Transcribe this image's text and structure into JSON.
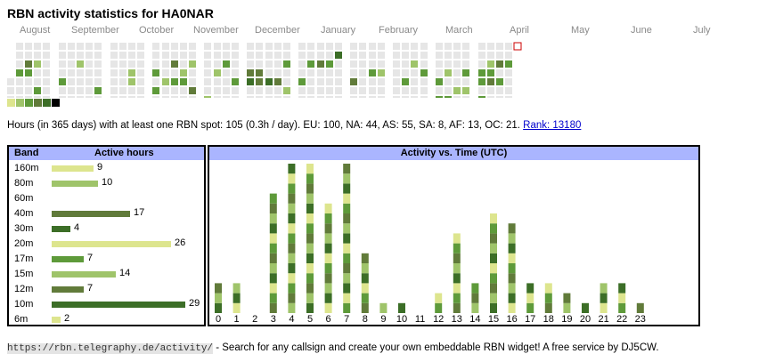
{
  "page": {
    "title": "RBN activity statistics for HA0NAR"
  },
  "months": [
    "August",
    "September",
    "October",
    "November",
    "December",
    "January",
    "February",
    "March",
    "April",
    "May",
    "June",
    "July"
  ],
  "colors": {
    "empty": "#e6e6e6",
    "levels": [
      "#dde58e",
      "#9fc46a",
      "#5e9a3a",
      "#617b3a",
      "#3c6e27",
      "#000000"
    ],
    "today_border": "#cc0000",
    "header_bg": "#aab5ff"
  },
  "summary": {
    "text": "Hours (in 365 days) with at least one RBN spot: 105 (0.3h / day). EU: 100, NA: 44, AS: 55, SA: 8, AF: 13, OC: 21.",
    "rank_link": "Rank: 13180"
  },
  "bands": {
    "header_band": "Band",
    "header_hours": "Active hours",
    "rows": [
      {
        "band": "160m",
        "hours": 9,
        "color": "#dde58e"
      },
      {
        "band": "80m",
        "hours": 10,
        "color": "#9fc46a"
      },
      {
        "band": "60m",
        "hours": 0,
        "color": "#9fc46a"
      },
      {
        "band": "40m",
        "hours": 17,
        "color": "#617b3a"
      },
      {
        "band": "30m",
        "hours": 4,
        "color": "#3c6e27"
      },
      {
        "band": "20m",
        "hours": 26,
        "color": "#dde58e"
      },
      {
        "band": "17m",
        "hours": 7,
        "color": "#5e9a3a"
      },
      {
        "band": "15m",
        "hours": 14,
        "color": "#9fc46a"
      },
      {
        "band": "12m",
        "hours": 7,
        "color": "#617b3a"
      },
      {
        "band": "10m",
        "hours": 29,
        "color": "#3c6e27"
      },
      {
        "band": "6m",
        "hours": 2,
        "color": "#dde58e"
      }
    ]
  },
  "chart_data": {
    "type": "bar",
    "title": "Activity vs. Time (UTC)",
    "categories": [
      "0",
      "1",
      "2",
      "3",
      "4",
      "5",
      "6",
      "7",
      "8",
      "9",
      "10",
      "11",
      "12",
      "13",
      "14",
      "15",
      "16",
      "17",
      "18",
      "19",
      "20",
      "21",
      "22",
      "23"
    ],
    "values": [
      3,
      3,
      0,
      12,
      15,
      15,
      11,
      15,
      6,
      1,
      1,
      0,
      2,
      8,
      3,
      10,
      9,
      3,
      3,
      2,
      1,
      3,
      3,
      1
    ]
  },
  "footer": {
    "url": "https://rbn.telegraphy.de/activity/",
    "text": " - Search for any callsign and create your own embeddable RBN widget! A free service by DJ5CW."
  }
}
